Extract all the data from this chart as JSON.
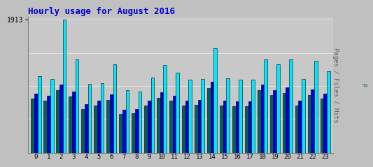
{
  "title": "Hourly usage for August 2016",
  "ylabel_right": "Pages / Files / Hits",
  "ymax": 1913,
  "hours": [
    0,
    1,
    2,
    3,
    4,
    5,
    6,
    7,
    8,
    9,
    10,
    11,
    12,
    13,
    14,
    15,
    16,
    17,
    18,
    19,
    20,
    21,
    22,
    23
  ],
  "pages": [
    780,
    750,
    900,
    810,
    630,
    680,
    760,
    560,
    570,
    680,
    790,
    750,
    680,
    690,
    930,
    680,
    670,
    670,
    900,
    830,
    860,
    680,
    830,
    780
  ],
  "files": [
    850,
    820,
    980,
    880,
    700,
    750,
    840,
    620,
    630,
    750,
    870,
    820,
    750,
    760,
    1020,
    750,
    740,
    740,
    980,
    900,
    940,
    750,
    910,
    850
  ],
  "hits": [
    1100,
    1060,
    1913,
    1340,
    990,
    1000,
    1270,
    900,
    880,
    1080,
    1260,
    1150,
    1050,
    1060,
    1500,
    1070,
    1050,
    1050,
    1340,
    1270,
    1340,
    1060,
    1320,
    1170
  ],
  "color_pages": "#006060",
  "color_files": "#0000dd",
  "color_hits": "#00e8ff",
  "bg_color": "#c0c0c0",
  "plot_bg": "#c8c8c8",
  "title_color": "#0000cc",
  "bar_width": 0.27,
  "bar_edge_color": "#000000",
  "right_label_colors": [
    "#00cccc",
    "#0000cc",
    "#006060"
  ],
  "right_label_parts": [
    "Hits",
    "Files",
    "Pages"
  ]
}
